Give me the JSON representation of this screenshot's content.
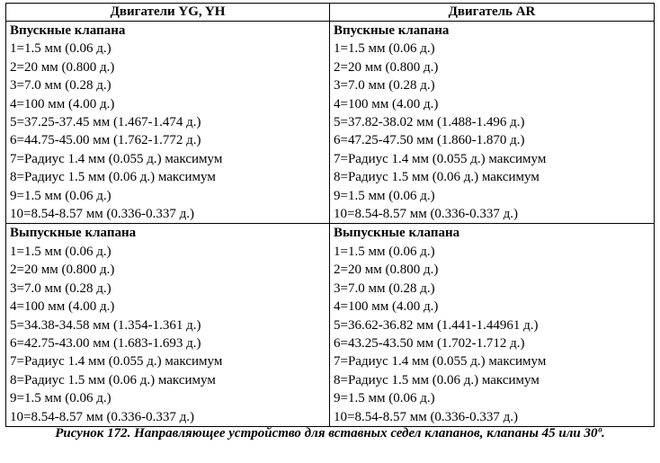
{
  "table": {
    "header": [
      "Двигатели YG, YH",
      "Двигатель AR"
    ],
    "sections": [
      {
        "cells": [
          {
            "title": "Впускные клапана",
            "lines": [
              "1=1.5 мм (0.06 д.)",
              "2=20 мм (0.800 д.)",
              "3=7.0 мм (0.28 д.)",
              "4=100 мм (4.00 д.)",
              "5=37.25-37.45 мм (1.467-1.474 д.)",
              "6=44.75-45.00 мм (1.762-1.772 д.)",
              "7=Радиус 1.4 мм (0.055 д.) максимум",
              "8=Радиус 1.5 мм (0.06 д.) максимум",
              "9=1.5 мм (0.06 д.)",
              "10=8.54-8.57 мм (0.336-0.337 д.)"
            ]
          },
          {
            "title": "Впускные клапана",
            "lines": [
              "1=1.5 мм (0.06 д.)",
              "2=20 мм (0.800 д.)",
              "3=7.0 мм (0.28 д.)",
              "4=100 мм (4.00 д.)",
              "5=37.82-38.02 мм (1.488-1.496 д.)",
              "6=47.25-47.50 мм (1.860-1.870 д.)",
              "7=Радиус 1.4 мм (0.055 д.) максимум",
              "8=Радиус 1.5 мм (0.06 д.) максимум",
              "9=1.5 мм (0.06 д.)",
              "10=8.54-8.57 мм (0.336-0.337 д.)"
            ]
          }
        ]
      },
      {
        "cells": [
          {
            "title": "Выпускные клапана",
            "lines": [
              "1=1.5 мм (0.06 д.)",
              "2=20 мм (0.800 д.)",
              "3=7.0 мм (0.28 д.)",
              "4=100 мм (4.00 д.)",
              "5=34.38-34.58 мм (1.354-1.361 д.)",
              "6=42.75-43.00 мм (1.683-1.693 д.)",
              "7=Радиус 1.4 мм (0.055 д.) максимум",
              "8=Радиус 1.5 мм (0.06 д.) максимум",
              "9=1.5 мм (0.06 д.)",
              "10=8.54-8.57 мм (0.336-0.337 д.)"
            ]
          },
          {
            "title": "Выпускные клапана",
            "lines": [
              "1=1.5 мм (0.06 д.)",
              "2=20 мм (0.800 д.)",
              "3=7.0 мм (0.28 д.)",
              "4=100 мм (4.00 д.)",
              "5=36.62-36.82 мм (1.441-1.44961 д.)",
              "6=43.25-43.50 мм (1.702-1.712 д.)",
              "7=Радиус 1.4 мм (0.055 д.) максимум",
              "8=Радиус 1.5 мм (0.06 д.) максимум",
              "9=1.5 мм (0.06 д.)",
              "10=8.54-8.57 мм (0.336-0.337 д.)"
            ]
          }
        ]
      }
    ]
  },
  "caption": "Рисунок 172. Направляющее устройство для вставных седел клапанов, клапаны 45 или 30º."
}
